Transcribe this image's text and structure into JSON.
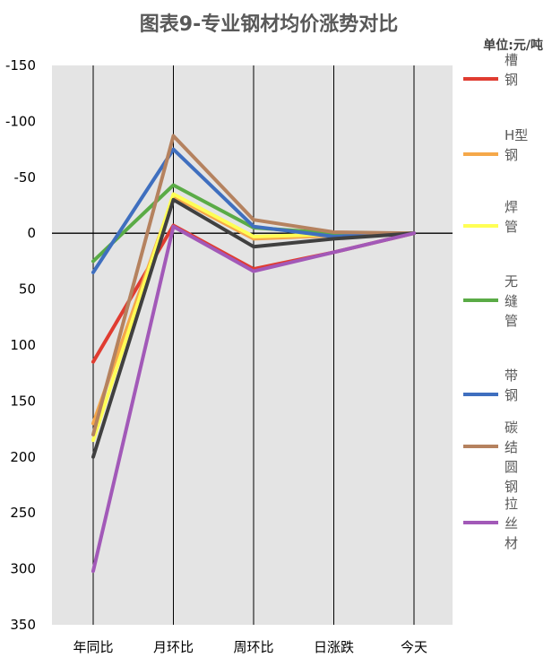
{
  "chart_data": {
    "type": "line",
    "title": "图表9-专业钢材均价涨势对比",
    "unit": "单位:元/吨",
    "categories": [
      "年同比",
      "月环比",
      "周环比",
      "日涨跌",
      "今天"
    ],
    "y_ticks": [
      "-150",
      "-100",
      "-50",
      "0",
      "50",
      "100",
      "150",
      "200",
      "250",
      "300",
      "350"
    ],
    "ylim": [
      -150,
      350
    ],
    "y_inverted": true,
    "grid": "vertical",
    "legend_position": "right",
    "series": [
      {
        "name": "槽钢",
        "color": "#e03c31",
        "values": [
          115,
          -7,
          32,
          17,
          0
        ]
      },
      {
        "name": "H型钢",
        "color": "#f5a84a",
        "values": [
          170,
          -33,
          5,
          2,
          0
        ]
      },
      {
        "name": "焊管",
        "color": "#ffff55",
        "values": [
          185,
          -35,
          3,
          1,
          0
        ]
      },
      {
        "name": "无缝管",
        "color": "#5aab46",
        "values": [
          25,
          -43,
          -5,
          0,
          0
        ]
      },
      {
        "name": "带钢",
        "color": "#3f6fbf",
        "values": [
          35,
          -75,
          -6,
          3,
          0
        ]
      },
      {
        "name": "碳结圆钢",
        "color": "#b5825f",
        "values": [
          180,
          -87,
          -12,
          -1,
          0
        ]
      },
      {
        "name": "",
        "color": "#404040",
        "values": [
          200,
          -30,
          12,
          5,
          0
        ]
      },
      {
        "name": "拉丝材",
        "color": "#a259b8",
        "values": [
          302,
          -6,
          34,
          17,
          0
        ]
      }
    ]
  }
}
